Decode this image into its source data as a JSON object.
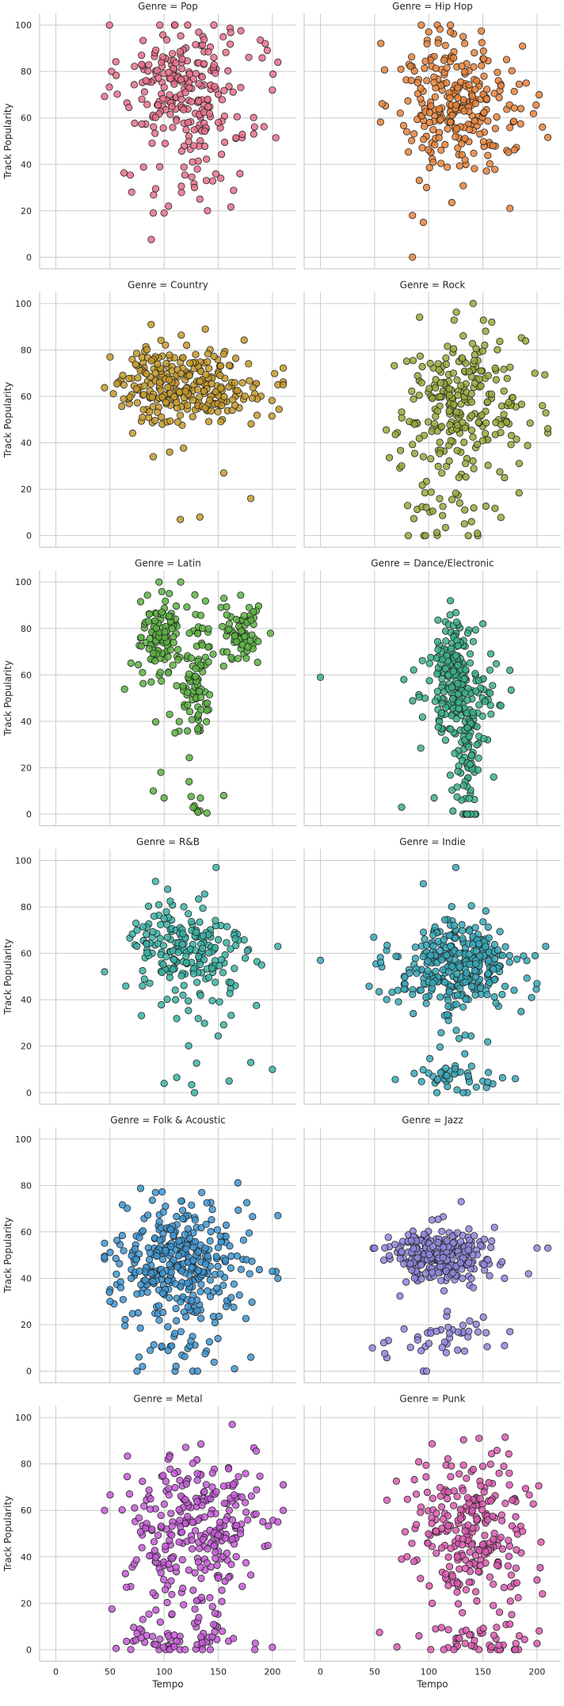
{
  "chart_data": {
    "type": "scatter",
    "xlabel": "Tempo",
    "ylabel": "Track Popularity",
    "xlim": [
      -15,
      222
    ],
    "ylim": [
      -5,
      105
    ],
    "xticks": [
      0,
      50,
      100,
      150,
      200
    ],
    "yticks": [
      0,
      20,
      40,
      60,
      80,
      100
    ],
    "grid": true,
    "panels": [
      {
        "title": "Genre = Pop",
        "color": "#e8708a",
        "clusters": [
          [
            110,
            75,
            25,
            14,
            170
          ],
          [
            150,
            70,
            30,
            18,
            60
          ],
          [
            125,
            35,
            25,
            12,
            25
          ]
        ],
        "extra": [
          [
            70,
            28
          ],
          [
            90,
            19
          ],
          [
            100,
            19
          ],
          [
            104,
            22
          ],
          [
            128,
            30
          ],
          [
            133,
            25
          ],
          [
            140,
            20
          ],
          [
            170,
            36
          ],
          [
            200,
            72
          ],
          [
            205,
            84
          ],
          [
            122,
            58
          ],
          [
            96,
            100
          ],
          [
            150,
            58
          ]
        ]
      },
      {
        "title": "Genre = Hip Hop",
        "color": "#e8833a",
        "clusters": [
          [
            120,
            70,
            25,
            14,
            170
          ],
          [
            150,
            65,
            28,
            15,
            80
          ],
          [
            115,
            45,
            15,
            10,
            20
          ]
        ],
        "extra": [
          [
            85,
            18
          ],
          [
            95,
            15
          ],
          [
            85,
            0
          ],
          [
            175,
            21
          ],
          [
            205,
            56
          ],
          [
            202,
            70
          ],
          [
            190,
            75
          ],
          [
            98,
            30
          ],
          [
            120,
            97
          ]
        ]
      },
      {
        "title": "Genre = Country",
        "color": "#c49a2a",
        "clusters": [
          [
            125,
            64,
            35,
            8,
            240
          ],
          [
            100,
            70,
            18,
            8,
            40
          ]
        ],
        "extra": [
          [
            50,
            77
          ],
          [
            90,
            34
          ],
          [
            105,
            36
          ],
          [
            115,
            7
          ],
          [
            133,
            8
          ],
          [
            155,
            27
          ],
          [
            180,
            16
          ],
          [
            205,
            65
          ],
          [
            210,
            65
          ],
          [
            88,
            91
          ],
          [
            138,
            89
          ],
          [
            80,
            51
          ]
        ]
      },
      {
        "title": "Genre = Rock",
        "color": "#9aa83a",
        "clusters": [
          [
            130,
            55,
            30,
            16,
            250
          ],
          [
            125,
            12,
            20,
            8,
            30
          ]
        ],
        "extra": [
          [
            205,
            56
          ],
          [
            198,
            70
          ],
          [
            95,
            34
          ],
          [
            75,
            30
          ],
          [
            145,
            1
          ],
          [
            170,
            25
          ]
        ]
      },
      {
        "title": "Genre = Latin",
        "color": "#5cb342",
        "clusters": [
          [
            96,
            78,
            8,
            8,
            80
          ],
          [
            130,
            58,
            8,
            14,
            80
          ],
          [
            172,
            78,
            10,
            7,
            70
          ],
          [
            102,
            70,
            20,
            10,
            40
          ],
          [
            131,
            2,
            5,
            3,
            8
          ]
        ],
        "extra": [
          [
            97,
            18
          ],
          [
            100,
            7
          ],
          [
            90,
            10
          ],
          [
            123,
            14
          ],
          [
            155,
            8
          ],
          [
            105,
            43
          ],
          [
            110,
            35
          ],
          [
            80,
            61
          ]
        ]
      },
      {
        "title": "Genre = Dance/Electronic",
        "color": "#3bb088",
        "clusters": [
          [
            124,
            62,
            8,
            12,
            150
          ],
          [
            136,
            25,
            6,
            18,
            100
          ],
          [
            110,
            55,
            15,
            10,
            40
          ],
          [
            148,
            50,
            12,
            8,
            30
          ]
        ],
        "extra": [
          [
            0,
            59
          ],
          [
            75,
            3
          ],
          [
            105,
            7
          ],
          [
            160,
            16
          ],
          [
            175,
            62
          ],
          [
            120,
            92
          ],
          [
            150,
            82
          ],
          [
            77,
            58
          ]
        ]
      },
      {
        "title": "Genre = R&B",
        "color": "#38b3a4",
        "clusters": [
          [
            120,
            62,
            28,
            10,
            180
          ],
          [
            130,
            28,
            35,
            20,
            30
          ]
        ],
        "extra": [
          [
            75,
            70
          ],
          [
            80,
            46
          ],
          [
            100,
            75
          ],
          [
            148,
            97
          ],
          [
            200,
            10
          ],
          [
            205,
            63
          ],
          [
            190,
            55
          ],
          [
            180,
            13
          ],
          [
            160,
            5
          ],
          [
            100,
            4
          ],
          [
            92,
            91
          ],
          [
            95,
            81
          ]
        ]
      },
      {
        "title": "Genre = Indie",
        "color": "#37a8b8",
        "clusters": [
          [
            125,
            55,
            28,
            9,
            330
          ],
          [
            125,
            6,
            25,
            4,
            40
          ],
          [
            130,
            25,
            15,
            8,
            15
          ]
        ],
        "extra": [
          [
            0,
            57
          ],
          [
            208,
            63
          ],
          [
            200,
            47
          ],
          [
            195,
            41
          ],
          [
            180,
            6
          ],
          [
            125,
            97
          ],
          [
            95,
            90
          ]
        ]
      },
      {
        "title": "Genre = Folk & Acoustic",
        "color": "#3d95d1",
        "clusters": [
          [
            115,
            48,
            28,
            12,
            330
          ],
          [
            115,
            15,
            25,
            10,
            40
          ]
        ],
        "extra": [
          [
            50,
            30
          ],
          [
            60,
            36
          ],
          [
            80,
            2
          ],
          [
            75,
            0
          ],
          [
            205,
            67
          ],
          [
            200,
            43
          ],
          [
            205,
            40
          ],
          [
            180,
            6
          ],
          [
            165,
            1
          ],
          [
            92,
            77
          ]
        ]
      },
      {
        "title": "Genre = Jazz",
        "color": "#8f86dc",
        "clusters": [
          [
            110,
            50,
            22,
            6,
            280
          ],
          [
            110,
            15,
            25,
            5,
            40
          ]
        ],
        "extra": [
          [
            48,
            10
          ],
          [
            50,
            53
          ],
          [
            200,
            53
          ],
          [
            210,
            53
          ],
          [
            170,
            11
          ],
          [
            175,
            17
          ],
          [
            170,
            40
          ],
          [
            130,
            73
          ],
          [
            95,
            0
          ],
          [
            98,
            0
          ]
        ]
      },
      {
        "title": "Genre = Metal",
        "color": "#c45ad6",
        "clusters": [
          [
            125,
            55,
            30,
            14,
            250
          ],
          [
            120,
            4,
            30,
            4,
            60
          ],
          [
            125,
            25,
            25,
            8,
            40
          ]
        ],
        "extra": [
          [
            75,
            7
          ],
          [
            200,
            1
          ],
          [
            210,
            71
          ],
          [
            210,
            60
          ],
          [
            205,
            55
          ],
          [
            105,
            83
          ]
        ]
      },
      {
        "title": "Genre = Punk",
        "color": "#dc5ab0",
        "clusters": [
          [
            140,
            52,
            28,
            15,
            260
          ],
          [
            140,
            4,
            30,
            4,
            50
          ]
        ],
        "extra": [
          [
            75,
            39
          ],
          [
            80,
            40
          ],
          [
            200,
            30
          ],
          [
            205,
            24
          ],
          [
            202,
            8
          ],
          [
            150,
            79
          ],
          [
            165,
            76
          ]
        ]
      }
    ]
  }
}
